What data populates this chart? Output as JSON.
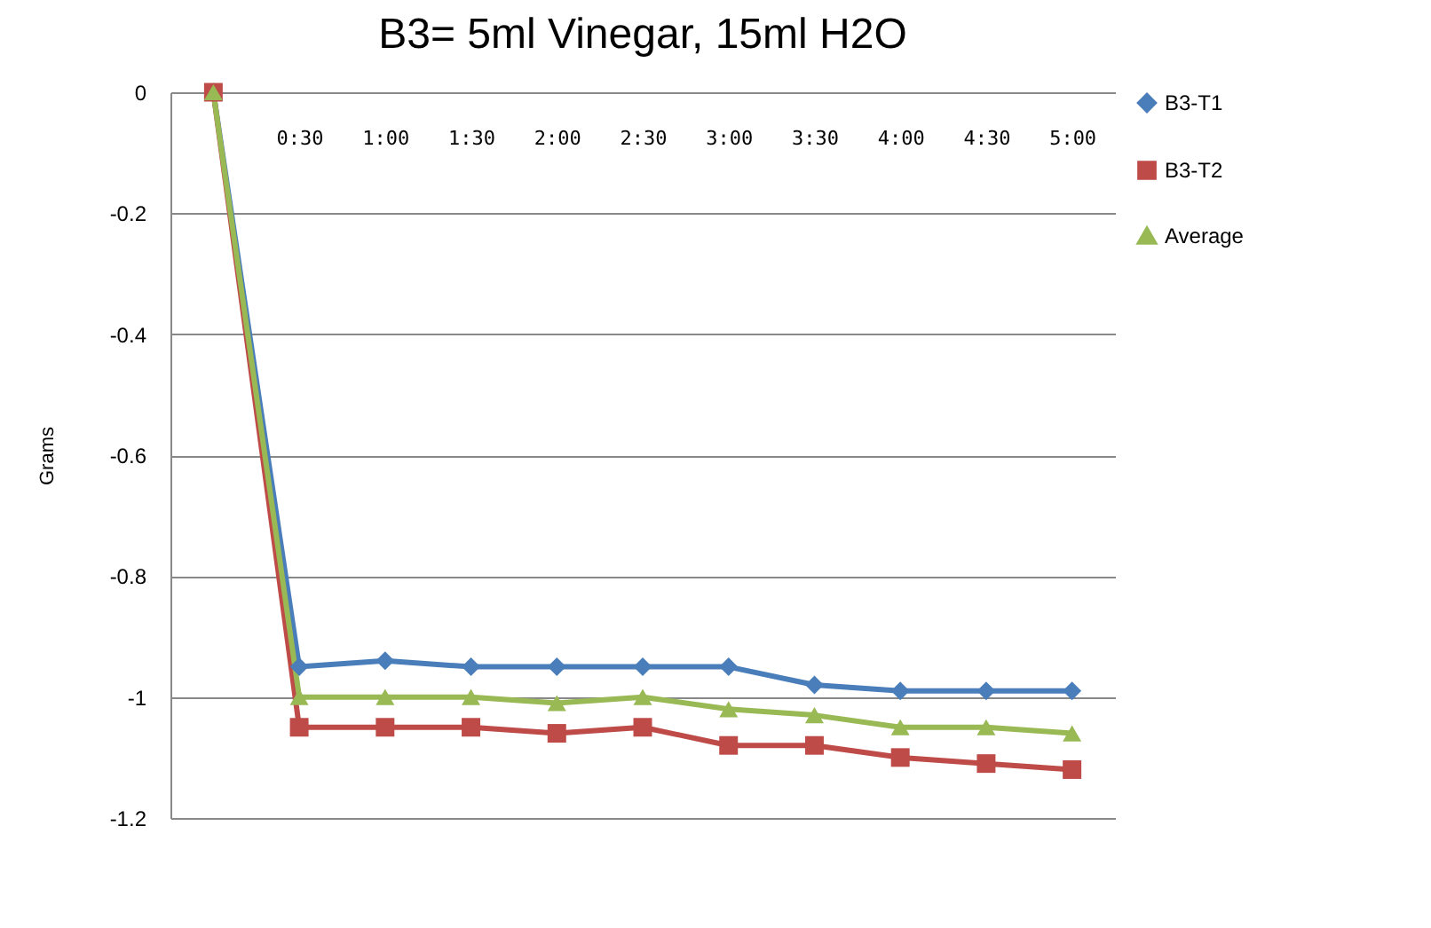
{
  "chart_data": {
    "type": "line",
    "title": "B3= 5ml Vinegar, 15ml H2O",
    "ylabel": "Grams",
    "categories": [
      null,
      "0:30",
      "1:00",
      "1:30",
      "2:00",
      "2:30",
      "3:00",
      "3:30",
      "4:00",
      "4:30",
      "5:00"
    ],
    "series": [
      {
        "name": "B3-T1",
        "color": "#4a7ebb",
        "marker": "diamond",
        "values": [
          0,
          -0.95,
          -0.94,
          -0.95,
          -0.95,
          -0.95,
          -0.95,
          -0.98,
          -0.99,
          -0.99,
          -0.99
        ]
      },
      {
        "name": "B3-T2",
        "color": "#be4b48",
        "marker": "square",
        "values": [
          0,
          -1.05,
          -1.05,
          -1.05,
          -1.06,
          -1.05,
          -1.08,
          -1.08,
          -1.1,
          -1.11,
          -1.12
        ]
      },
      {
        "name": "Average",
        "color": "#98b954",
        "marker": "triangle",
        "values": [
          0,
          -1,
          -1,
          -1,
          -1.01,
          -1,
          -1.02,
          -1.03,
          -1.05,
          -1.05,
          -1.06
        ]
      }
    ],
    "ylim": [
      -1.2,
      0
    ],
    "yticks": [
      -1.2,
      -1,
      -0.8,
      -0.6,
      -0.4,
      -0.2,
      0
    ],
    "grid": "y",
    "legend": "right"
  }
}
